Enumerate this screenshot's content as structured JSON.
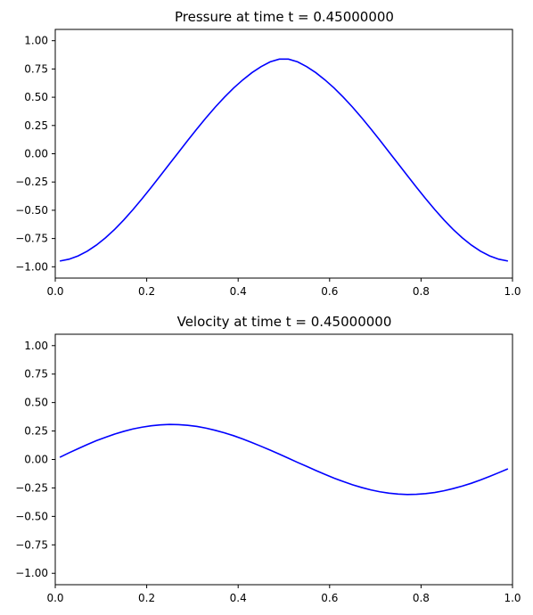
{
  "chart_data": [
    {
      "type": "line",
      "title": "Pressure at time t =     0.45000000",
      "xlabel": "",
      "ylabel": "",
      "xlim": [
        0.0,
        1.0
      ],
      "ylim": [
        -1.1,
        1.1
      ],
      "xticks": [
        "0.0",
        "0.2",
        "0.4",
        "0.6",
        "0.8",
        "1.0"
      ],
      "yticks": [
        "−1.00",
        "−0.75",
        "−0.50",
        "−0.25",
        "0.00",
        "0.25",
        "0.50",
        "0.75",
        "1.00"
      ],
      "grid": false,
      "color": "#0000ff",
      "series": [
        {
          "x": [
            0.01,
            0.03,
            0.05,
            0.07,
            0.09,
            0.11,
            0.13,
            0.15,
            0.17,
            0.19,
            0.21,
            0.23,
            0.25,
            0.27,
            0.29,
            0.31,
            0.33,
            0.35,
            0.37,
            0.39,
            0.41,
            0.43,
            0.45,
            0.47,
            0.49,
            0.51,
            0.53,
            0.55,
            0.57,
            0.59,
            0.61,
            0.63,
            0.65,
            0.67,
            0.69,
            0.71,
            0.73,
            0.75,
            0.77,
            0.79,
            0.81,
            0.83,
            0.85,
            0.87,
            0.89,
            0.91,
            0.93,
            0.95,
            0.97,
            0.99
          ],
          "y": [
            -0.949,
            -0.933,
            -0.904,
            -0.862,
            -0.808,
            -0.743,
            -0.669,
            -0.585,
            -0.494,
            -0.397,
            -0.297,
            -0.193,
            -0.089,
            0.015,
            0.119,
            0.221,
            0.319,
            0.413,
            0.5,
            0.581,
            0.653,
            0.717,
            0.77,
            0.813,
            0.837,
            0.837,
            0.813,
            0.77,
            0.717,
            0.653,
            0.581,
            0.5,
            0.413,
            0.319,
            0.221,
            0.119,
            0.015,
            -0.089,
            -0.193,
            -0.297,
            -0.397,
            -0.494,
            -0.585,
            -0.669,
            -0.743,
            -0.808,
            -0.862,
            -0.904,
            -0.933,
            -0.949
          ]
        }
      ]
    },
    {
      "type": "line",
      "title": "Velocity at time t =     0.45000000",
      "xlabel": "",
      "ylabel": "",
      "xlim": [
        0.0,
        1.0
      ],
      "ylim": [
        -1.1,
        1.1
      ],
      "xticks": [
        "0.0",
        "0.2",
        "0.4",
        "0.6",
        "0.8",
        "1.0"
      ],
      "yticks": [
        "−1.00",
        "−0.75",
        "−0.50",
        "−0.25",
        "0.00",
        "0.25",
        "0.50",
        "0.75",
        "1.00"
      ],
      "grid": false,
      "color": "#0000ff",
      "series": [
        {
          "x": [
            0.01,
            0.03,
            0.05,
            0.07,
            0.09,
            0.11,
            0.13,
            0.15,
            0.17,
            0.19,
            0.21,
            0.23,
            0.25,
            0.27,
            0.29,
            0.31,
            0.33,
            0.35,
            0.37,
            0.39,
            0.41,
            0.43,
            0.45,
            0.47,
            0.49,
            0.51,
            0.53,
            0.55,
            0.57,
            0.59,
            0.61,
            0.63,
            0.65,
            0.67,
            0.69,
            0.71,
            0.73,
            0.75,
            0.77,
            0.79,
            0.81,
            0.83,
            0.85,
            0.87,
            0.89,
            0.91,
            0.93,
            0.95,
            0.97,
            0.99
          ],
          "y": [
            0.019,
            0.058,
            0.095,
            0.131,
            0.165,
            0.195,
            0.223,
            0.247,
            0.268,
            0.284,
            0.296,
            0.304,
            0.308,
            0.306,
            0.3,
            0.29,
            0.275,
            0.256,
            0.234,
            0.209,
            0.18,
            0.149,
            0.116,
            0.082,
            0.047,
            0.011,
            -0.026,
            -0.061,
            -0.097,
            -0.131,
            -0.164,
            -0.194,
            -0.222,
            -0.246,
            -0.267,
            -0.284,
            -0.296,
            -0.304,
            -0.308,
            -0.306,
            -0.3,
            -0.29,
            -0.275,
            -0.256,
            -0.234,
            -0.209,
            -0.18,
            -0.149,
            -0.116,
            -0.082
          ]
        }
      ]
    }
  ]
}
